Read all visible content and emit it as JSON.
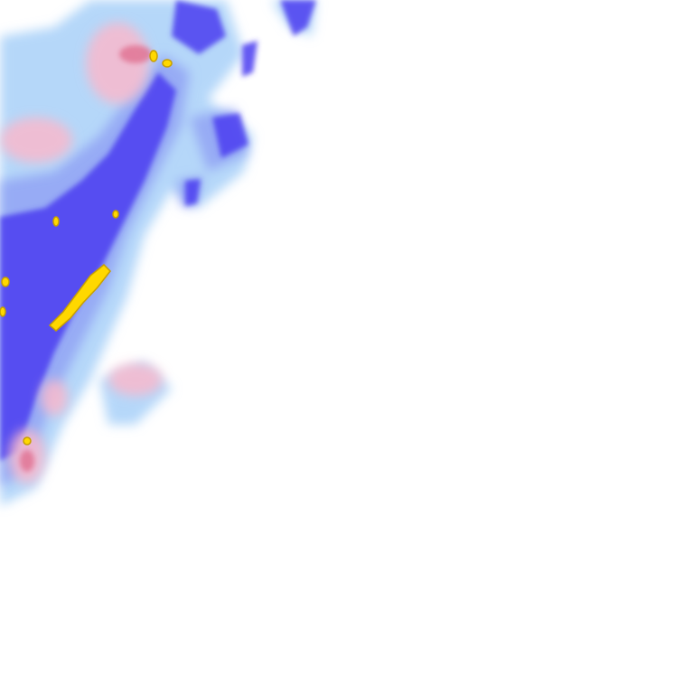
{
  "map": {
    "layer": "precipitation-radar",
    "colors": {
      "light_rain": "#a8d0f8",
      "moderate_rain": "#8ea0f4",
      "heavy_rain": "#4a3cf0",
      "very_heavy_rain": "#ffd800",
      "extreme_outline": "#c8a000",
      "mixed_precip": "#f8b8cc",
      "mixed_heavy": "#e07090",
      "background": "#ffffff"
    }
  }
}
